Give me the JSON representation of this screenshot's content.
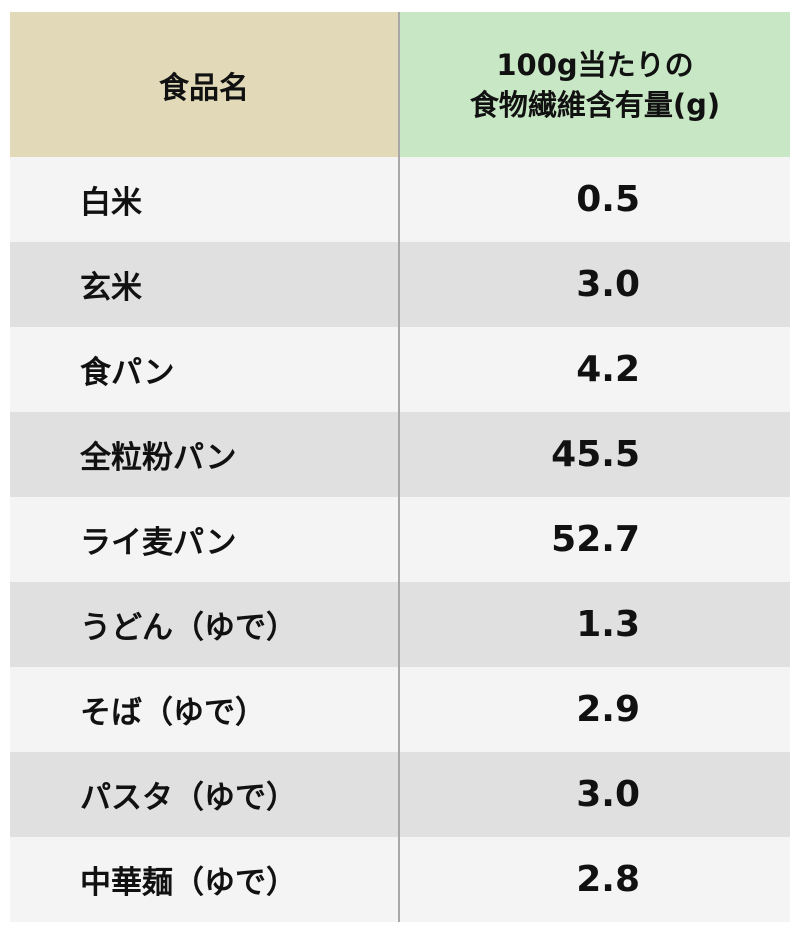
{
  "table": {
    "header": {
      "name": "食品名",
      "value": [
        "100g当たりの",
        "食物繊維含有量(g)"
      ]
    },
    "rows": [
      [
        "白米",
        "0.5"
      ],
      [
        "玄米",
        "3.0"
      ],
      [
        "食パン",
        "4.2"
      ],
      [
        "全粒粉パン",
        "45.5"
      ],
      [
        "ライ麦パン",
        "52.7"
      ],
      [
        "うどん（ゆで）",
        "1.3"
      ],
      [
        "そば（ゆで）",
        "2.9"
      ],
      [
        "パスタ（ゆで）",
        "3.0"
      ],
      [
        "中華麺（ゆで）",
        "2.8"
      ]
    ]
  }
}
